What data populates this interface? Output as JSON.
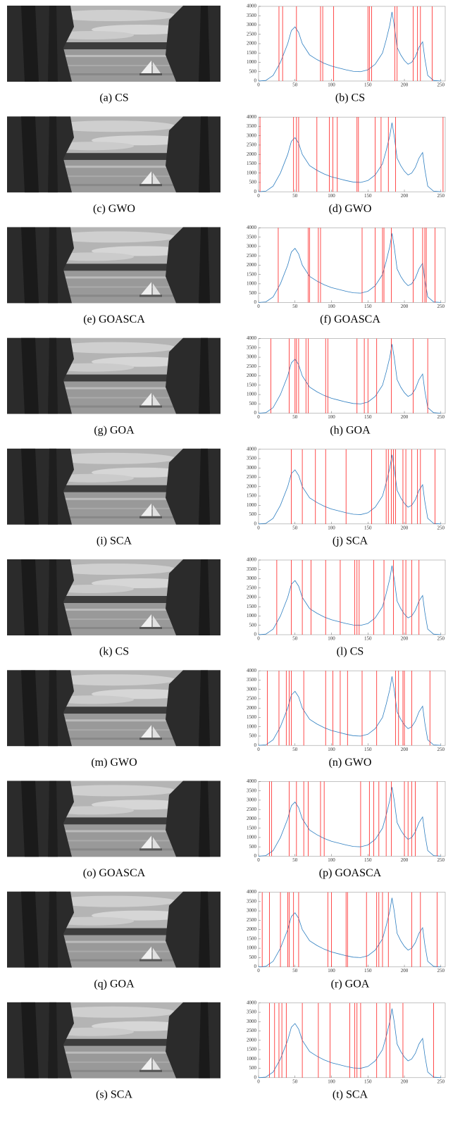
{
  "image_captions": [
    "(a) CS",
    "(c) GWO",
    "(e) GOASCA",
    "(g) GOA",
    "(i) SCA",
    "(k) CS",
    "(m) GWO",
    "(o) GOASCA",
    "(q) GOA",
    "(s) SCA"
  ],
  "chart_data": [
    {
      "type": "line",
      "caption": "(b) CS",
      "color": "#2f7fc1",
      "threshold_color": "#ff2020",
      "x": [
        0,
        10,
        20,
        30,
        40,
        45,
        50,
        55,
        60,
        70,
        80,
        90,
        100,
        110,
        120,
        130,
        140,
        150,
        160,
        170,
        175,
        180,
        183,
        186,
        190,
        195,
        200,
        205,
        210,
        215,
        220,
        225,
        228,
        232,
        240,
        250
      ],
      "values": [
        0,
        30,
        300,
        1000,
        2000,
        2700,
        2900,
        2600,
        2000,
        1400,
        1150,
        950,
        800,
        700,
        600,
        520,
        500,
        600,
        900,
        1500,
        2200,
        3000,
        3700,
        3000,
        1800,
        1400,
        1100,
        900,
        1000,
        1300,
        1800,
        2100,
        1200,
        300,
        30,
        0
      ],
      "thresholds": [
        28,
        33,
        52,
        85,
        88,
        103,
        150,
        152,
        155,
        187,
        190,
        212,
        218,
        222,
        238
      ],
      "xlim": [
        0,
        256
      ],
      "ylim": [
        0,
        4000
      ],
      "xticks": [
        0,
        50,
        100,
        150,
        200,
        250
      ],
      "yticks": [
        0,
        500,
        1000,
        1500,
        2000,
        2500,
        3000,
        3500,
        4000
      ]
    },
    {
      "type": "line",
      "caption": "(d) GWO",
      "color": "#2f7fc1",
      "threshold_color": "#ff2020",
      "x": [
        0,
        10,
        20,
        30,
        40,
        45,
        50,
        55,
        60,
        70,
        80,
        90,
        100,
        110,
        120,
        130,
        140,
        150,
        160,
        170,
        175,
        180,
        183,
        186,
        190,
        195,
        200,
        205,
        210,
        215,
        220,
        225,
        228,
        232,
        240,
        250
      ],
      "values": [
        0,
        30,
        300,
        1000,
        2000,
        2700,
        2900,
        2600,
        2000,
        1400,
        1150,
        950,
        800,
        700,
        600,
        520,
        500,
        600,
        900,
        1500,
        2200,
        3000,
        3700,
        3000,
        1800,
        1400,
        1100,
        900,
        1000,
        1300,
        1800,
        2100,
        1200,
        300,
        30,
        0
      ],
      "thresholds": [
        2,
        48,
        52,
        55,
        80,
        97,
        102,
        108,
        135,
        137,
        160,
        168,
        178,
        188,
        253
      ],
      "xlim": [
        0,
        256
      ],
      "ylim": [
        0,
        4000
      ],
      "xticks": [
        0,
        50,
        100,
        150,
        200,
        250
      ],
      "yticks": [
        0,
        500,
        1000,
        1500,
        2000,
        2500,
        3000,
        3500,
        4000
      ]
    },
    {
      "type": "line",
      "caption": "(f) GOASCA",
      "color": "#2f7fc1",
      "threshold_color": "#ff2020",
      "x": [
        0,
        10,
        20,
        30,
        40,
        45,
        50,
        55,
        60,
        70,
        80,
        90,
        100,
        110,
        120,
        130,
        140,
        150,
        160,
        170,
        175,
        180,
        183,
        186,
        190,
        195,
        200,
        205,
        210,
        215,
        220,
        225,
        228,
        232,
        240,
        250
      ],
      "values": [
        0,
        30,
        300,
        1000,
        2000,
        2700,
        2900,
        2600,
        2000,
        1400,
        1150,
        950,
        800,
        700,
        600,
        520,
        500,
        600,
        900,
        1500,
        2200,
        3000,
        3700,
        3000,
        1800,
        1400,
        1100,
        900,
        1000,
        1300,
        1800,
        2100,
        1200,
        300,
        30,
        0
      ],
      "thresholds": [
        27,
        68,
        70,
        82,
        85,
        142,
        160,
        170,
        172,
        182,
        212,
        225,
        228,
        230,
        242
      ],
      "xlim": [
        0,
        256
      ],
      "ylim": [
        0,
        4000
      ],
      "xticks": [
        0,
        50,
        100,
        150,
        200,
        250
      ],
      "yticks": [
        0,
        500,
        1000,
        1500,
        2000,
        2500,
        3000,
        3500,
        4000
      ]
    },
    {
      "type": "line",
      "caption": "(h) GOA",
      "color": "#2f7fc1",
      "threshold_color": "#ff2020",
      "x": [
        0,
        10,
        20,
        30,
        40,
        45,
        50,
        55,
        60,
        70,
        80,
        90,
        100,
        110,
        120,
        130,
        140,
        150,
        160,
        170,
        175,
        180,
        183,
        186,
        190,
        195,
        200,
        205,
        210,
        215,
        220,
        225,
        228,
        232,
        240,
        250
      ],
      "values": [
        0,
        30,
        300,
        1000,
        2000,
        2700,
        2900,
        2600,
        2000,
        1400,
        1150,
        950,
        800,
        700,
        600,
        520,
        500,
        600,
        900,
        1500,
        2200,
        3000,
        3700,
        3000,
        1800,
        1400,
        1100,
        900,
        1000,
        1300,
        1800,
        2100,
        1200,
        300,
        30,
        0
      ],
      "thresholds": [
        17,
        42,
        50,
        52,
        55,
        65,
        68,
        92,
        95,
        135,
        145,
        150,
        162,
        182,
        212,
        232
      ],
      "xlim": [
        0,
        256
      ],
      "ylim": [
        0,
        4000
      ],
      "xticks": [
        0,
        50,
        100,
        150,
        200,
        250
      ],
      "yticks": [
        0,
        500,
        1000,
        1500,
        2000,
        2500,
        3000,
        3500,
        4000
      ]
    },
    {
      "type": "line",
      "caption": "(j) SCA",
      "color": "#2f7fc1",
      "threshold_color": "#ff2020",
      "x": [
        0,
        10,
        20,
        30,
        40,
        45,
        50,
        55,
        60,
        70,
        80,
        90,
        100,
        110,
        120,
        130,
        140,
        150,
        160,
        170,
        175,
        180,
        183,
        186,
        190,
        195,
        200,
        205,
        210,
        215,
        220,
        225,
        228,
        232,
        240,
        250
      ],
      "values": [
        0,
        30,
        300,
        1000,
        2000,
        2700,
        2900,
        2600,
        2000,
        1400,
        1150,
        950,
        800,
        700,
        600,
        520,
        500,
        600,
        900,
        1500,
        2200,
        3000,
        3700,
        3000,
        1800,
        1400,
        1100,
        900,
        1000,
        1300,
        1800,
        2100,
        1200,
        300,
        30,
        0
      ],
      "thresholds": [
        45,
        60,
        78,
        92,
        120,
        155,
        175,
        178,
        182,
        185,
        188,
        198,
        202,
        210,
        218,
        222,
        242
      ],
      "xlim": [
        0,
        256
      ],
      "ylim": [
        0,
        4000
      ],
      "xticks": [
        0,
        50,
        100,
        150,
        200,
        250
      ],
      "yticks": [
        0,
        500,
        1000,
        1500,
        2000,
        2500,
        3000,
        3500,
        4000
      ]
    },
    {
      "type": "line",
      "caption": "(l) CS",
      "color": "#2f7fc1",
      "threshold_color": "#ff2020",
      "x": [
        0,
        10,
        20,
        30,
        40,
        45,
        50,
        55,
        60,
        70,
        80,
        90,
        100,
        110,
        120,
        130,
        140,
        150,
        160,
        170,
        175,
        180,
        183,
        186,
        190,
        195,
        200,
        205,
        210,
        215,
        220,
        225,
        228,
        232,
        240,
        250
      ],
      "values": [
        0,
        30,
        300,
        1000,
        2000,
        2700,
        2900,
        2600,
        2000,
        1400,
        1150,
        950,
        800,
        700,
        600,
        520,
        500,
        600,
        900,
        1500,
        2200,
        3000,
        3700,
        3000,
        1800,
        1400,
        1100,
        900,
        1000,
        1300,
        1800,
        2100,
        1200,
        300,
        30,
        0
      ],
      "thresholds": [
        25,
        45,
        60,
        72,
        92,
        112,
        132,
        135,
        138,
        158,
        172,
        185,
        198,
        202,
        210,
        220
      ],
      "xlim": [
        0,
        256
      ],
      "ylim": [
        0,
        4000
      ],
      "xticks": [
        0,
        50,
        100,
        150,
        200,
        250
      ],
      "yticks": [
        0,
        500,
        1000,
        1500,
        2000,
        2500,
        3000,
        3500,
        4000
      ]
    },
    {
      "type": "line",
      "caption": "(n) GWO",
      "color": "#2f7fc1",
      "threshold_color": "#ff2020",
      "x": [
        0,
        10,
        20,
        30,
        40,
        45,
        50,
        55,
        60,
        70,
        80,
        90,
        100,
        110,
        120,
        130,
        140,
        150,
        160,
        170,
        175,
        180,
        183,
        186,
        190,
        195,
        200,
        205,
        210,
        215,
        220,
        225,
        228,
        232,
        240,
        250
      ],
      "values": [
        0,
        30,
        300,
        1000,
        2000,
        2700,
        2900,
        2600,
        2000,
        1400,
        1150,
        950,
        800,
        700,
        600,
        520,
        500,
        600,
        900,
        1500,
        2200,
        3000,
        3700,
        3000,
        1800,
        1400,
        1100,
        900,
        1000,
        1300,
        1800,
        2100,
        1200,
        300,
        30,
        0
      ],
      "thresholds": [
        12,
        28,
        38,
        42,
        45,
        62,
        92,
        102,
        112,
        122,
        142,
        162,
        188,
        192,
        198,
        200,
        210,
        235
      ],
      "xlim": [
        0,
        256
      ],
      "ylim": [
        0,
        4000
      ],
      "xticks": [
        0,
        50,
        100,
        150,
        200,
        250
      ],
      "yticks": [
        0,
        500,
        1000,
        1500,
        2000,
        2500,
        3000,
        3500,
        4000
      ]
    },
    {
      "type": "line",
      "caption": "(p) GOASCA",
      "color": "#2f7fc1",
      "threshold_color": "#ff2020",
      "x": [
        0,
        10,
        20,
        30,
        40,
        45,
        50,
        55,
        60,
        70,
        80,
        90,
        100,
        110,
        120,
        130,
        140,
        150,
        160,
        170,
        175,
        180,
        183,
        186,
        190,
        195,
        200,
        205,
        210,
        215,
        220,
        225,
        228,
        232,
        240,
        250
      ],
      "values": [
        0,
        30,
        300,
        1000,
        2000,
        2700,
        2900,
        2600,
        2000,
        1400,
        1150,
        950,
        800,
        700,
        600,
        520,
        500,
        600,
        900,
        1500,
        2200,
        3000,
        3700,
        3000,
        1800,
        1400,
        1100,
        900,
        1000,
        1300,
        1800,
        2100,
        1200,
        300,
        30,
        0
      ],
      "thresholds": [
        15,
        18,
        42,
        52,
        62,
        68,
        85,
        90,
        140,
        152,
        158,
        165,
        175,
        182,
        200,
        205,
        210,
        215,
        245
      ],
      "xlim": [
        0,
        256
      ],
      "ylim": [
        0,
        4000
      ],
      "xticks": [
        0,
        50,
        100,
        150,
        200,
        250
      ],
      "yticks": [
        0,
        500,
        1000,
        1500,
        2000,
        2500,
        3000,
        3500,
        4000
      ]
    },
    {
      "type": "line",
      "caption": "(r) GOA",
      "color": "#2f7fc1",
      "threshold_color": "#ff2020",
      "x": [
        0,
        10,
        20,
        30,
        40,
        45,
        50,
        55,
        60,
        70,
        80,
        90,
        100,
        110,
        120,
        130,
        140,
        150,
        160,
        170,
        175,
        180,
        183,
        186,
        190,
        195,
        200,
        205,
        210,
        215,
        220,
        225,
        228,
        232,
        240,
        250
      ],
      "values": [
        0,
        30,
        300,
        1000,
        2000,
        2700,
        2900,
        2600,
        2000,
        1400,
        1150,
        950,
        800,
        700,
        600,
        520,
        500,
        600,
        900,
        1500,
        2200,
        3000,
        3700,
        3000,
        1800,
        1400,
        1100,
        900,
        1000,
        1300,
        1800,
        2100,
        1200,
        300,
        30,
        0
      ],
      "thresholds": [
        5,
        15,
        30,
        40,
        42,
        48,
        55,
        95,
        100,
        120,
        122,
        148,
        162,
        165,
        170,
        178,
        210,
        222,
        245
      ],
      "xlim": [
        0,
        256
      ],
      "ylim": [
        0,
        4000
      ],
      "xticks": [
        0,
        50,
        100,
        150,
        200,
        250
      ],
      "yticks": [
        0,
        500,
        1000,
        1500,
        2000,
        2500,
        3000,
        3500,
        4000
      ]
    },
    {
      "type": "line",
      "caption": "(t) SCA",
      "color": "#2f7fc1",
      "threshold_color": "#ff2020",
      "x": [
        0,
        10,
        20,
        30,
        40,
        45,
        50,
        55,
        60,
        70,
        80,
        90,
        100,
        110,
        120,
        130,
        140,
        150,
        160,
        170,
        175,
        180,
        183,
        186,
        190,
        195,
        200,
        205,
        210,
        215,
        220,
        225,
        228,
        232,
        240,
        250
      ],
      "values": [
        0,
        30,
        300,
        1000,
        2000,
        2700,
        2900,
        2600,
        2000,
        1400,
        1150,
        950,
        800,
        700,
        600,
        520,
        500,
        600,
        900,
        1500,
        2200,
        3000,
        3700,
        3000,
        1800,
        1400,
        1100,
        900,
        1000,
        1300,
        1800,
        2100,
        1200,
        300,
        30,
        0
      ],
      "thresholds": [
        15,
        22,
        28,
        32,
        38,
        60,
        82,
        98,
        125,
        132,
        135,
        140,
        162,
        175,
        180,
        198,
        240
      ],
      "xlim": [
        0,
        256
      ],
      "ylim": [
        0,
        4000
      ],
      "xticks": [
        0,
        50,
        100,
        150,
        200,
        250
      ],
      "yticks": [
        0,
        500,
        1000,
        1500,
        2000,
        2500,
        3000,
        3500,
        4000
      ]
    }
  ]
}
